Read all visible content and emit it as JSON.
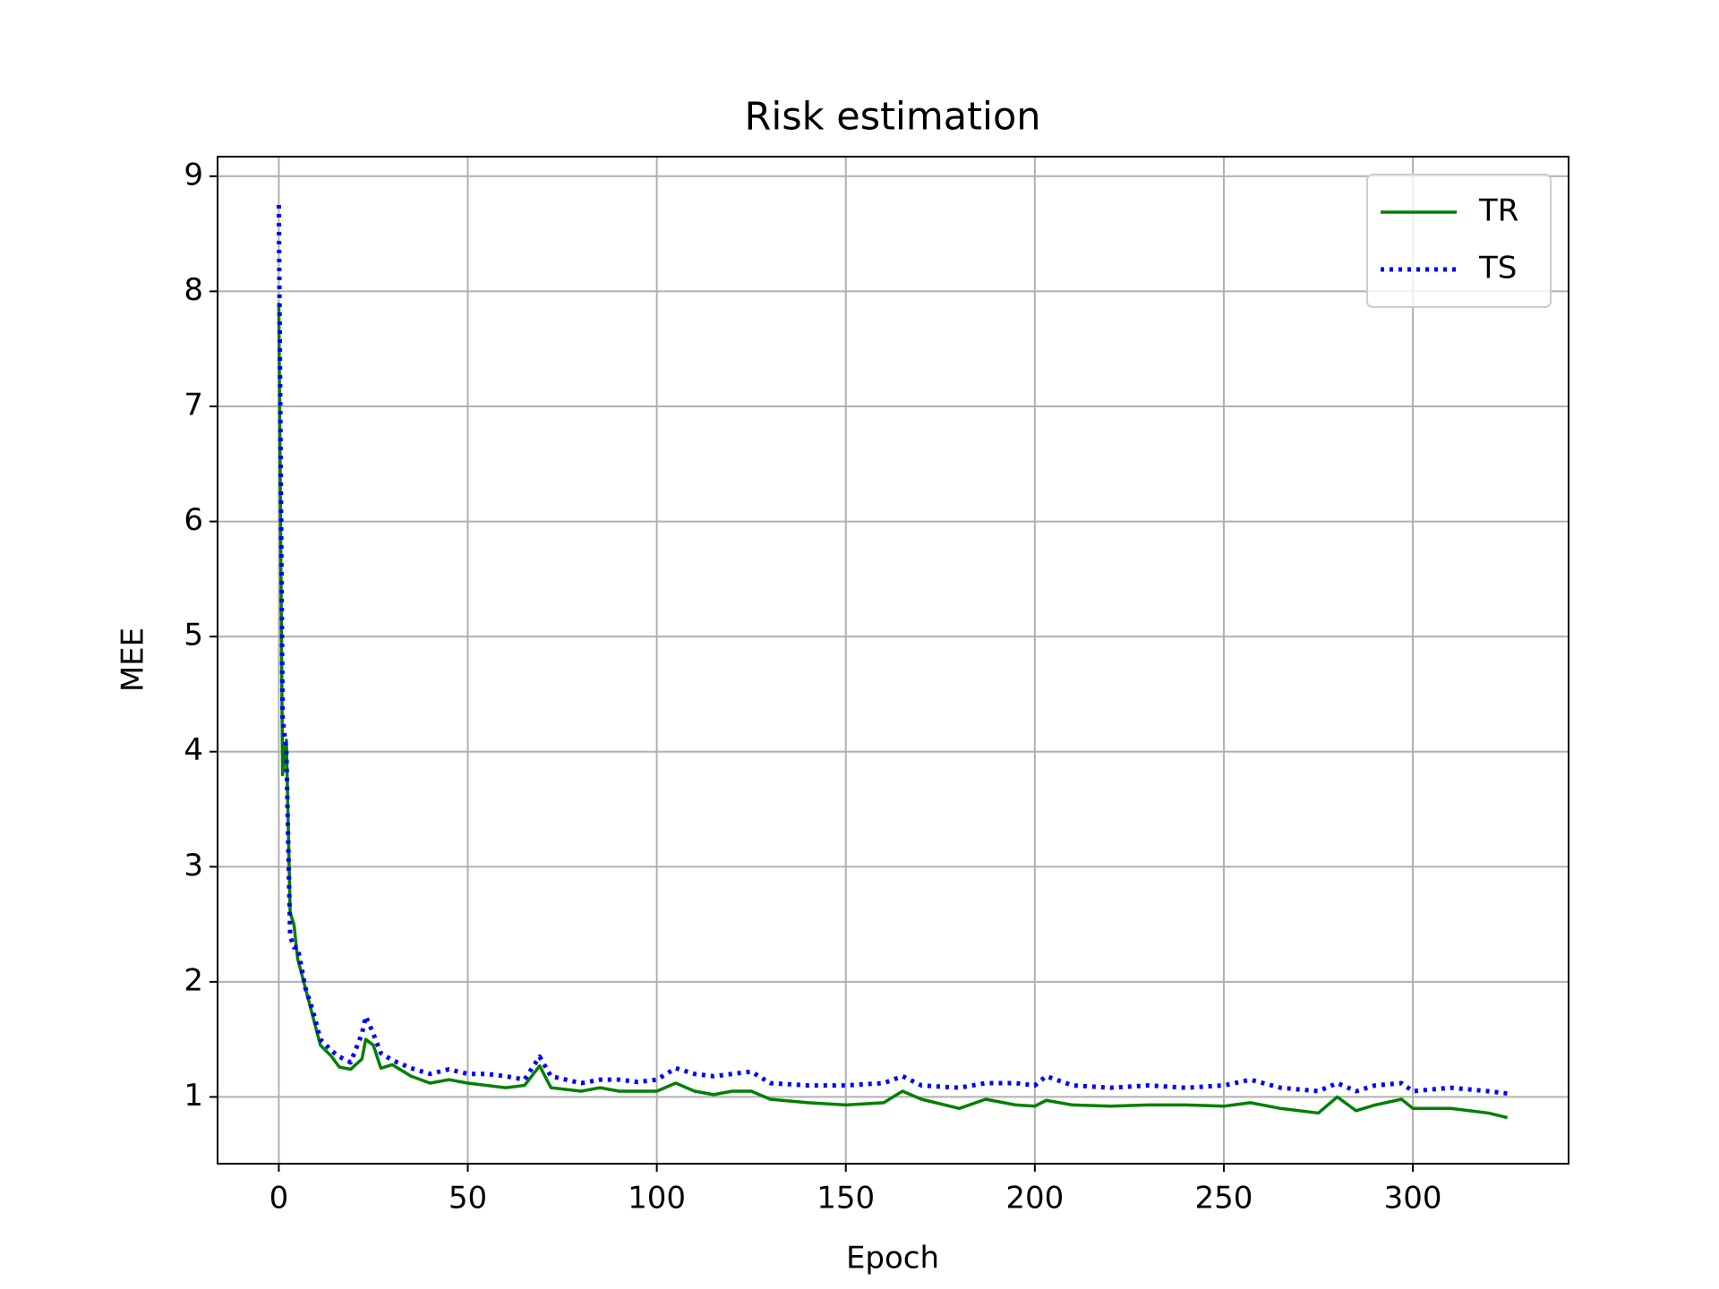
{
  "chart_data": {
    "type": "line",
    "title": "Risk estimation",
    "x_label": "Epoch",
    "y_label": "MEE",
    "x": [
      0,
      1,
      2,
      3,
      4,
      5,
      7,
      9,
      11,
      14,
      16,
      19,
      22,
      23,
      25,
      27,
      30,
      35,
      40,
      45,
      50,
      55,
      60,
      65,
      69,
      72,
      80,
      85,
      90,
      95,
      100,
      105,
      110,
      115,
      120,
      125,
      130,
      140,
      150,
      160,
      165,
      170,
      180,
      187,
      195,
      200,
      203,
      210,
      220,
      230,
      240,
      250,
      257,
      265,
      275,
      280,
      285,
      290,
      297,
      300,
      310,
      320,
      325
    ],
    "series": [
      {
        "name": "TR",
        "color": "#008000",
        "style": "solid",
        "values": [
          7.9,
          3.8,
          4.1,
          2.6,
          2.5,
          2.2,
          1.95,
          1.7,
          1.45,
          1.35,
          1.26,
          1.24,
          1.33,
          1.5,
          1.45,
          1.25,
          1.28,
          1.18,
          1.12,
          1.15,
          1.12,
          1.1,
          1.08,
          1.1,
          1.27,
          1.08,
          1.05,
          1.08,
          1.05,
          1.05,
          1.05,
          1.12,
          1.05,
          1.02,
          1.05,
          1.05,
          0.98,
          0.95,
          0.93,
          0.95,
          1.05,
          0.98,
          0.9,
          0.98,
          0.93,
          0.92,
          0.97,
          0.93,
          0.92,
          0.93,
          0.93,
          0.92,
          0.95,
          0.9,
          0.86,
          1.0,
          0.88,
          0.93,
          0.98,
          0.9,
          0.9,
          0.86,
          0.82
        ]
      },
      {
        "name": "TS",
        "color": "#0000ff",
        "style": "dotted",
        "values": [
          8.75,
          4.3,
          4.0,
          2.4,
          2.3,
          2.3,
          1.95,
          1.75,
          1.5,
          1.4,
          1.35,
          1.3,
          1.55,
          1.7,
          1.55,
          1.38,
          1.32,
          1.25,
          1.2,
          1.24,
          1.2,
          1.2,
          1.18,
          1.15,
          1.35,
          1.18,
          1.12,
          1.15,
          1.15,
          1.13,
          1.15,
          1.25,
          1.2,
          1.18,
          1.2,
          1.22,
          1.12,
          1.1,
          1.1,
          1.12,
          1.18,
          1.1,
          1.08,
          1.12,
          1.12,
          1.1,
          1.18,
          1.1,
          1.08,
          1.1,
          1.08,
          1.1,
          1.15,
          1.08,
          1.05,
          1.12,
          1.05,
          1.1,
          1.12,
          1.05,
          1.08,
          1.05,
          1.03
        ]
      }
    ],
    "xlim": [
      -16.2,
      341.2
    ],
    "ylim": [
      0.42,
      9.17
    ],
    "xticks": [
      0,
      50,
      100,
      150,
      200,
      250,
      300
    ],
    "yticks": [
      1,
      2,
      3,
      4,
      5,
      6,
      7,
      8,
      9
    ],
    "grid": true,
    "legend": "upper right"
  }
}
